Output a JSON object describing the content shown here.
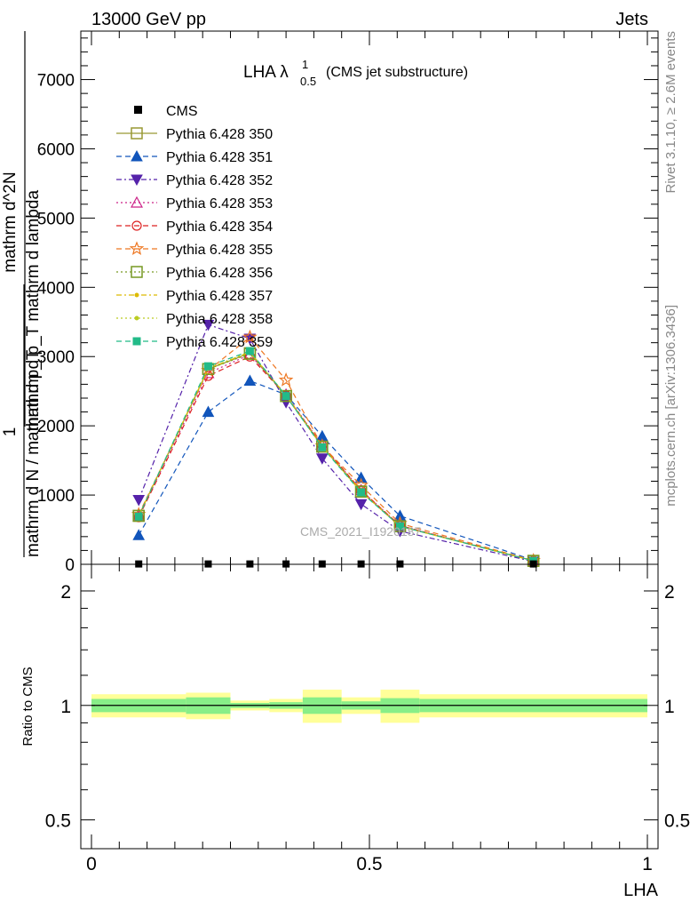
{
  "header": {
    "left": "13000 GeV pp",
    "right": "Jets"
  },
  "side_labels": {
    "rivet": "Rivet 3.1.10, ≥ 2.6M events",
    "mcplots": "mcplots.cern.ch [arXiv:1306.3436]"
  },
  "watermark": "CMS_2021_I1920187",
  "chart_data": [
    {
      "type": "line",
      "title": {
        "main": "LHA λ",
        "sup": "1",
        "sub": "0.5",
        "suffix": "(CMS jet substructure)"
      },
      "ylabel": {
        "line1": "1",
        "line2": "mathrm d N / mathrm d p_T",
        "line3": "mathrm d^2N",
        "line4": "mathrm d p_T mathrm d lambda"
      },
      "yticks": [
        "0",
        "1000",
        "2000",
        "3000",
        "4000",
        "5000",
        "6000",
        "7000"
      ],
      "ylim": [
        0,
        7700
      ],
      "xlim": [
        0,
        1
      ],
      "grid": false,
      "legend_position": "top-left",
      "x": [
        0.085,
        0.21,
        0.285,
        0.35,
        0.415,
        0.485,
        0.555,
        0.795
      ],
      "cms": {
        "name": "CMS",
        "color": "#000000",
        "values": [
          5,
          5,
          5,
          5,
          5,
          5,
          5,
          5
        ]
      },
      "series": [
        {
          "name": "Pythia 6.428 350",
          "color": "#999933",
          "dash": "",
          "marker": "open-square",
          "values": [
            700,
            2820,
            3050,
            2430,
            1700,
            1050,
            550,
            50
          ]
        },
        {
          "name": "Pythia 6.428 351",
          "color": "#1155bb",
          "dash": "6,4",
          "marker": "filled-triangle-up",
          "values": [
            420,
            2200,
            2650,
            2450,
            1850,
            1250,
            700,
            60
          ]
        },
        {
          "name": "Pythia 6.428 352",
          "color": "#5522aa",
          "dash": "6,3,2,3",
          "marker": "filled-triangle-down",
          "values": [
            930,
            3460,
            3260,
            2340,
            1530,
            870,
            480,
            40
          ]
        },
        {
          "name": "Pythia 6.428 353",
          "color": "#cc2288",
          "dash": "2,3",
          "marker": "open-triangle-up",
          "values": [
            690,
            2760,
            3030,
            2450,
            1720,
            1070,
            560,
            50
          ]
        },
        {
          "name": "Pythia 6.428 354",
          "color": "#dd2222",
          "dash": "6,4",
          "marker": "open-circle",
          "values": [
            680,
            2720,
            3000,
            2440,
            1720,
            1070,
            560,
            50
          ]
        },
        {
          "name": "Pythia 6.428 355",
          "color": "#ee7722",
          "dash": "6,4",
          "marker": "open-star",
          "values": [
            720,
            2800,
            3280,
            2660,
            1710,
            1140,
            590,
            55
          ]
        },
        {
          "name": "Pythia 6.428 356",
          "color": "#779922",
          "dash": "2,3",
          "marker": "open-square",
          "values": [
            700,
            2820,
            3040,
            2430,
            1700,
            1050,
            550,
            50
          ]
        },
        {
          "name": "Pythia 6.428 357",
          "color": "#ddbb00",
          "dash": "6,3,2,3",
          "marker": "small-dot",
          "values": [
            700,
            2830,
            3060,
            2440,
            1700,
            1050,
            550,
            50
          ]
        },
        {
          "name": "Pythia 6.428 358",
          "color": "#bbcc22",
          "dash": "2,3",
          "marker": "small-dot",
          "values": [
            700,
            2830,
            3070,
            2440,
            1700,
            1050,
            550,
            50
          ]
        },
        {
          "name": "Pythia 6.428 359",
          "color": "#22bb88",
          "dash": "6,4",
          "marker": "filled-square",
          "values": [
            690,
            2860,
            3080,
            2430,
            1690,
            1040,
            550,
            50
          ]
        }
      ]
    },
    {
      "type": "area",
      "ylabel": "Ratio to CMS",
      "xlabel": "LHA",
      "yscale": "log",
      "ylim": [
        0.42,
        2.35
      ],
      "xlim": [
        0,
        1
      ],
      "yticks": [
        "0.5",
        "1",
        "2"
      ],
      "xticks": [
        "0",
        "0.5",
        "1"
      ],
      "reference_line": 1,
      "bin_edges": [
        0,
        0.17,
        0.25,
        0.32,
        0.38,
        0.45,
        0.52,
        0.59,
        1.0
      ],
      "band_inner": {
        "color": "#88ee88",
        "lo": [
          0.96,
          0.95,
          0.985,
          0.98,
          0.95,
          0.975,
          0.955,
          0.96
        ],
        "hi": [
          1.04,
          1.05,
          1.015,
          1.02,
          1.05,
          1.025,
          1.045,
          1.04
        ]
      },
      "band_outer": {
        "color": "#ffff99",
        "lo": [
          0.93,
          0.92,
          0.97,
          0.96,
          0.9,
          0.95,
          0.9,
          0.93
        ],
        "hi": [
          1.07,
          1.08,
          1.03,
          1.04,
          1.1,
          1.05,
          1.1,
          1.07
        ]
      }
    }
  ]
}
